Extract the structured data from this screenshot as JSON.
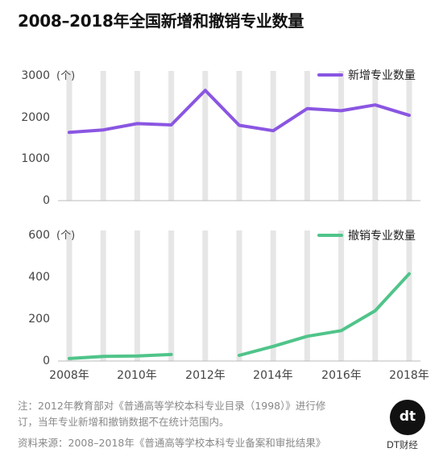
{
  "title": "2008–2018年全国新增和撤销专业数量",
  "chart_data": [
    {
      "type": "line",
      "x": [
        "2008年",
        "2009年",
        "2010年",
        "2011年",
        "2012年",
        "2013年",
        "2014年",
        "2015年",
        "2016年",
        "2017年",
        "2018年"
      ],
      "series": [
        {
          "name": "新增专业数量",
          "values": [
            1640,
            1700,
            1850,
            1820,
            2650,
            1810,
            1680,
            2210,
            2160,
            2300,
            2050
          ],
          "color": "#8a56e2"
        }
      ],
      "ylim": [
        0,
        3000
      ],
      "yticks": [
        "0",
        "1000",
        "2000",
        "3000"
      ],
      "unit": "(个)",
      "legend": "top-right",
      "grid": "vertical"
    },
    {
      "type": "line",
      "x": [
        "2008年",
        "2009年",
        "2010年",
        "2011年",
        "2012年",
        "2013年",
        "2014年",
        "2015年",
        "2016年",
        "2017年",
        "2018年"
      ],
      "xtick_labels": [
        "2008年",
        "2010年",
        "2012年",
        "2014年",
        "2016年",
        "2018年"
      ],
      "series": [
        {
          "name": "撤销专业数量",
          "values": [
            12,
            22,
            24,
            31,
            null,
            27,
            70,
            118,
            145,
            240,
            416
          ],
          "color": "#50c48a"
        }
      ],
      "ylim": [
        0,
        600
      ],
      "yticks": [
        "0",
        "200",
        "400",
        "600"
      ],
      "unit": "(个)",
      "legend": "top-right",
      "grid": "vertical"
    }
  ],
  "notes": {
    "line1": "注：2012年教育部对《普通高等学校本科专业目录（1998）》进行修",
    "line2": "订，当年专业新增和撤销数据不在统计范围内。",
    "source": "资料来源：2008–2018年《普通高等学校本科专业备案和审批结果》"
  },
  "logo": {
    "mark": "dt",
    "label": "DT财经"
  }
}
